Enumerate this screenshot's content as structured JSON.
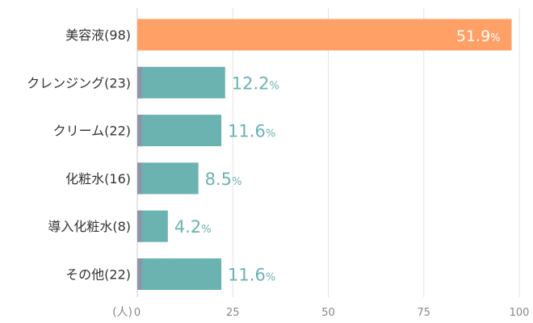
{
  "chart_data": {
    "type": "bar",
    "orientation": "horizontal",
    "categories": [
      "美容液(98)",
      "クレンジング(23)",
      "クリーム(22)",
      "化粧水(16)",
      "導入化粧水(8)",
      "その他(22)"
    ],
    "values": [
      98,
      23,
      22,
      16,
      8,
      22
    ],
    "percent_labels": [
      "51.9%",
      "12.2%",
      "11.6%",
      "8.5%",
      "4.2%",
      "11.6%"
    ],
    "highlight_index": 0,
    "x_unit_label": "(人)",
    "xlim": [
      0,
      100
    ],
    "x_ticks": [
      0,
      25,
      50,
      75,
      100
    ],
    "grid": true,
    "colors": {
      "highlight": "#ffa066",
      "bar": "#6ab3b1",
      "bar_stub": "#8b96a8",
      "grid": "#e4e4e4",
      "category_text": "#333333",
      "tick_text": "#888888",
      "highlight_label": "#ffffff"
    }
  }
}
